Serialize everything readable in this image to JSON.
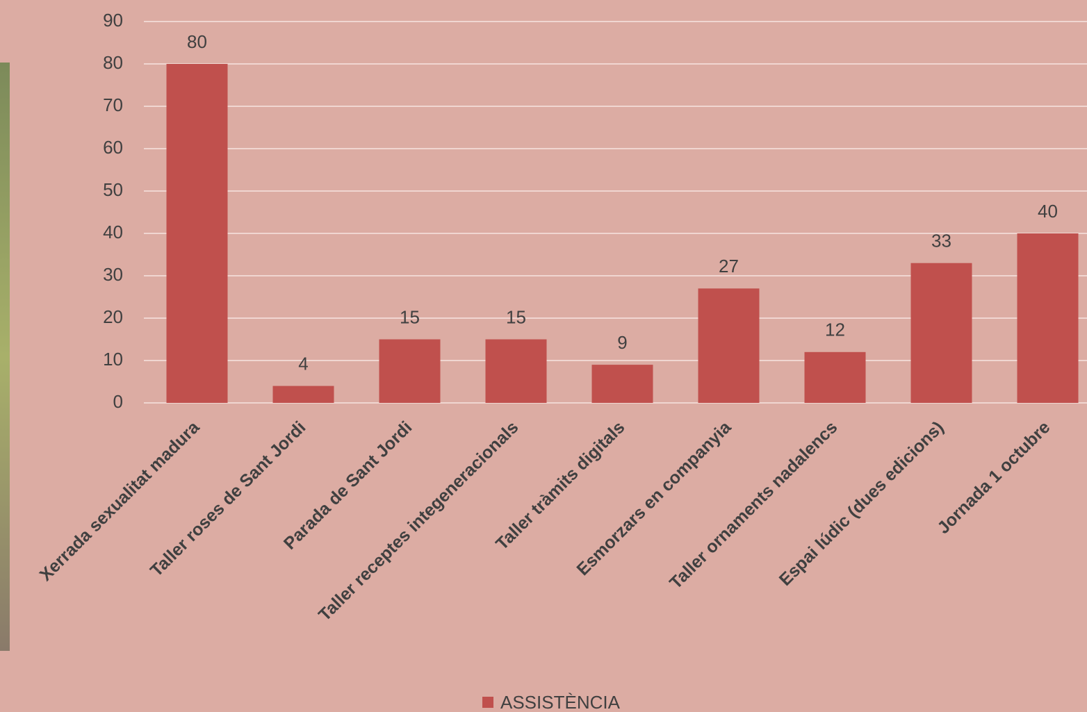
{
  "chart_data": {
    "type": "bar",
    "categories": [
      "Xerrada sexualitat madura",
      "Taller roses de Sant Jordi",
      "Parada de Sant Jordi",
      "Taller receptes integeneracionals",
      "Taller tràmits digitals",
      "Esmorzars en companyia",
      "Taller ornaments nadalencs",
      "Espai lúdic (dues edicions)",
      "Jornada 1 octubre"
    ],
    "series": [
      {
        "name": "ASSISTÈNCIA",
        "color": "#c0504d",
        "values": [
          80,
          4,
          15,
          15,
          9,
          27,
          12,
          33,
          40
        ]
      }
    ],
    "ylim": [
      0,
      90
    ],
    "yticks": [
      0,
      10,
      20,
      30,
      40,
      50,
      60,
      70,
      80,
      90
    ],
    "grid": true,
    "legend": "bottom"
  }
}
